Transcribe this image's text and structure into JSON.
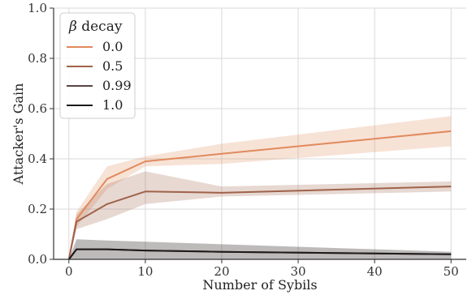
{
  "chart_data": {
    "type": "line",
    "title": "",
    "xlabel": "Number of Sybils",
    "ylabel": "Attacker's Gain",
    "xlim": [
      -2,
      52
    ],
    "ylim": [
      0.0,
      1.0
    ],
    "x": [
      0,
      1,
      5,
      10,
      20,
      50
    ],
    "xticks": [
      0,
      10,
      20,
      30,
      40,
      50
    ],
    "yticks": [
      0.0,
      0.2,
      0.4,
      0.6,
      0.8,
      1.0
    ],
    "xtick_labels": [
      "0",
      "10",
      "20",
      "30",
      "40",
      "50"
    ],
    "ytick_labels": [
      "0.0",
      "0.2",
      "0.4",
      "0.6",
      "0.8",
      "1.0"
    ],
    "grid": true,
    "legend": {
      "title_symbol": "β",
      "title_rest": " decay",
      "placement": "top-left"
    },
    "series": [
      {
        "name": "0.0",
        "color": "#e08a5c",
        "values": [
          0.0,
          0.16,
          0.32,
          0.39,
          0.42,
          0.51
        ],
        "lower": [
          0.0,
          0.13,
          0.28,
          0.37,
          0.38,
          0.45
        ],
        "upper": [
          0.0,
          0.19,
          0.37,
          0.41,
          0.46,
          0.57
        ]
      },
      {
        "name": "0.5",
        "color": "#a0624a",
        "values": [
          0.0,
          0.15,
          0.22,
          0.27,
          0.265,
          0.29
        ],
        "lower": [
          0.0,
          0.12,
          0.16,
          0.22,
          0.25,
          0.27
        ],
        "upper": [
          0.0,
          0.18,
          0.3,
          0.35,
          0.29,
          0.31
        ]
      },
      {
        "name": "0.99",
        "color": "#5a4540",
        "values": [
          0.0,
          0.04,
          0.04,
          0.035,
          0.03,
          0.02
        ],
        "lower": [
          0.0,
          0.0,
          0.0,
          0.0,
          0.0,
          0.0
        ],
        "upper": [
          0.0,
          0.08,
          0.075,
          0.07,
          0.06,
          0.03
        ]
      },
      {
        "name": "1.0",
        "color": "#1e1a1c",
        "values": [
          0.0,
          0.04,
          0.04,
          0.035,
          0.03,
          0.02
        ],
        "lower": [
          0.0,
          0.0,
          0.0,
          0.0,
          0.0,
          0.0
        ],
        "upper": [
          0.0,
          0.08,
          0.075,
          0.07,
          0.06,
          0.03
        ]
      }
    ]
  }
}
